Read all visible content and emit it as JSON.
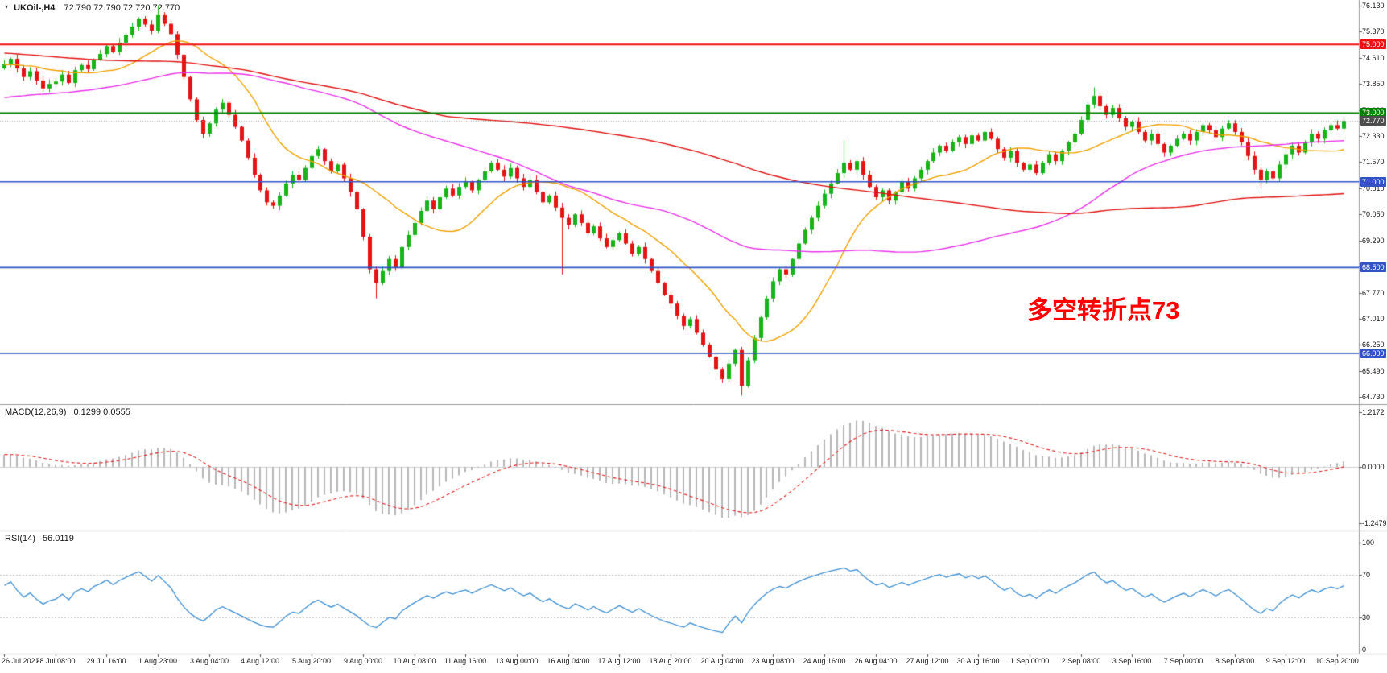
{
  "header": {
    "collapse_glyph": "▾",
    "symbol": "UKOil-,H4",
    "ohlc": "72.790 72.790 72.720 72.770"
  },
  "annotation": {
    "text": "多空转折点73",
    "color": "#ff0000"
  },
  "colors": {
    "up_candle": "#17b317",
    "down_candle": "#e41414",
    "macd_hist": "#b8b8b8",
    "macd_signal": "#e02020",
    "macd_zero": "#d0d0d0",
    "rsi_line": "#3f8fd0",
    "rsi_levels": "#c4c4c4",
    "separator": "#9a9a9a",
    "axis_text": "#1a1a1a",
    "current_line": "#888888"
  },
  "main_chart": {
    "price_ticks": [
      "76.130",
      "75.370",
      "74.610",
      "73.850",
      "73.090",
      "72.330",
      "71.570",
      "70.810",
      "70.050",
      "69.290",
      "68.530",
      "67.770",
      "67.010",
      "66.250",
      "65.490",
      "64.730"
    ],
    "hlines": [
      {
        "price": 75.0,
        "label": "75.000",
        "color": "#ee1111",
        "width": 2
      },
      {
        "price": 73.0,
        "label": "73.000",
        "color": "#008000",
        "width": 2
      },
      {
        "price": 71.0,
        "label": "71.000",
        "color": "#3353c4",
        "width": 1.6
      },
      {
        "price": 68.5,
        "label": "68.500",
        "color": "#3353c4",
        "width": 1.6
      },
      {
        "price": 66.0,
        "label": "66.000",
        "color": "#3353c4",
        "width": 1.6
      }
    ],
    "current_price": {
      "value": 72.77,
      "label": "72.770",
      "badge_bg": "#4d4d4d"
    }
  },
  "macd_panel": {
    "label": "MACD(12,26,9)",
    "values": "0.1299 0.0555",
    "ticks": [
      "1.2172",
      "0.0000",
      "-1.2479"
    ],
    "ylim": [
      -1.36,
      1.32
    ]
  },
  "rsi_panel": {
    "label": "RSI(14)",
    "value": "56.0119",
    "ticks": [
      "100",
      "70",
      "30",
      "0"
    ],
    "levels": [
      70,
      30
    ]
  },
  "chart_data": {
    "type": "candlestick",
    "symbol": "UKOil-",
    "timeframe": "H4",
    "ylim": [
      64.64,
      76.2
    ],
    "x_labels": [
      "26 Jul 2021",
      "28 Jul 08:00",
      "29 Jul 16:00",
      "1 Aug 23:00",
      "3 Aug 04:00",
      "4 Aug 12:00",
      "5 Aug 20:00",
      "9 Aug 00:00",
      "10 Aug 08:00",
      "11 Aug 16:00",
      "13 Aug 00:00",
      "16 Aug 04:00",
      "17 Aug 12:00",
      "18 Aug 20:00",
      "20 Aug 04:00",
      "23 Aug 08:00",
      "24 Aug 16:00",
      "26 Aug 04:00",
      "27 Aug 12:00",
      "30 Aug 16:00",
      "1 Sep 00:00",
      "2 Sep 08:00",
      "3 Sep 16:00",
      "7 Sep 00:00",
      "8 Sep 08:00",
      "9 Sep 12:00",
      "10 Sep 20:00"
    ],
    "label_every": 8,
    "first_open": 74.3,
    "closes": [
      74.42,
      74.58,
      74.3,
      74.05,
      74.22,
      73.95,
      73.72,
      73.85,
      73.92,
      74.12,
      73.88,
      74.25,
      74.4,
      74.28,
      74.55,
      74.72,
      74.95,
      74.78,
      75.05,
      75.28,
      75.52,
      75.75,
      75.58,
      75.4,
      75.85,
      75.6,
      75.3,
      74.7,
      74.05,
      73.4,
      72.8,
      72.4,
      72.7,
      73.1,
      73.3,
      72.95,
      72.6,
      72.2,
      71.7,
      71.2,
      70.75,
      70.4,
      70.3,
      70.6,
      70.95,
      71.2,
      71.05,
      71.4,
      71.75,
      71.95,
      71.6,
      71.3,
      71.5,
      71.1,
      70.7,
      70.2,
      69.4,
      68.45,
      68.05,
      68.4,
      68.75,
      68.5,
      69.1,
      69.45,
      69.8,
      70.15,
      70.45,
      70.2,
      70.55,
      70.8,
      70.6,
      70.85,
      71.0,
      70.75,
      71.05,
      71.3,
      71.55,
      71.35,
      71.15,
      71.4,
      71.1,
      70.85,
      71.05,
      70.7,
      70.4,
      70.6,
      70.25,
      69.95,
      69.75,
      70.05,
      69.8,
      69.5,
      69.7,
      69.35,
      69.1,
      69.3,
      69.5,
      69.2,
      68.9,
      69.1,
      68.75,
      68.4,
      68.05,
      67.7,
      67.45,
      67.1,
      66.8,
      67.0,
      66.6,
      66.25,
      65.9,
      65.55,
      65.25,
      65.7,
      66.1,
      65.05,
      65.8,
      66.45,
      67.05,
      67.6,
      68.1,
      68.45,
      68.3,
      68.75,
      69.2,
      69.6,
      69.95,
      70.3,
      70.65,
      70.95,
      71.25,
      71.55,
      71.35,
      71.6,
      71.2,
      70.85,
      70.55,
      70.75,
      70.45,
      70.7,
      71.0,
      70.8,
      71.1,
      71.35,
      71.6,
      71.85,
      72.05,
      71.9,
      72.15,
      72.3,
      72.1,
      72.35,
      72.2,
      72.45,
      72.25,
      71.95,
      71.7,
      71.9,
      71.55,
      71.35,
      71.5,
      71.25,
      71.55,
      71.8,
      71.6,
      71.9,
      72.15,
      72.4,
      72.8,
      73.25,
      73.5,
      73.2,
      72.95,
      73.15,
      72.85,
      72.6,
      72.75,
      72.45,
      72.2,
      72.4,
      72.1,
      71.85,
      72.05,
      72.25,
      72.4,
      72.2,
      72.45,
      72.65,
      72.5,
      72.3,
      72.55,
      72.7,
      72.45,
      72.15,
      71.75,
      71.35,
      71.05,
      71.3,
      71.1,
      71.5,
      71.8,
      72.05,
      71.85,
      72.15,
      72.4,
      72.25,
      72.5,
      72.65,
      72.55,
      72.77
    ],
    "wick_overrides": {
      "24": [
        76.13,
        null
      ],
      "58": [
        null,
        67.6
      ],
      "87": [
        null,
        68.3
      ],
      "115": [
        null,
        64.77
      ],
      "131": [
        72.2,
        null
      ],
      "170": [
        73.75,
        null
      ],
      "196": [
        null,
        70.82
      ]
    },
    "warmup_segments": [
      [
        75.9,
        80
      ],
      [
        73.1,
        45
      ],
      [
        74.4,
        15
      ]
    ],
    "moving_averages": [
      {
        "name": "ma-fast",
        "period": 16,
        "color": "#f0a000"
      },
      {
        "name": "ma-medium",
        "period": 60,
        "color": "#e832e8"
      },
      {
        "name": "ma-slow",
        "period": 130,
        "color": "#de1212"
      }
    ],
    "indicators": {
      "macd": {
        "params": [
          12,
          26,
          9
        ],
        "last_values": [
          0.1299,
          0.0555
        ]
      },
      "rsi": {
        "period": 14,
        "last_value": 56.0119,
        "levels": [
          70,
          30
        ],
        "ylim": [
          0,
          100
        ]
      }
    }
  }
}
